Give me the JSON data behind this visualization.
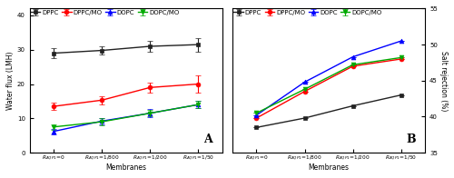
{
  "x_labels": [
    "R$_{\\/AQP1}$=0",
    "R$_{\\/AQP1}$=1/800",
    "R$_{\\/AQP1}$=1/200",
    "R$_{\\/AQP1}$=1/50"
  ],
  "x_positions": [
    0,
    1,
    2,
    3
  ],
  "panel_A": {
    "ylabel": "Water flux (LMH)",
    "ylim": [
      0,
      42
    ],
    "yticks": [
      0,
      10,
      20,
      30,
      40
    ],
    "label": "A",
    "series": [
      {
        "name": "DPPC",
        "y": [
          29.0,
          29.8,
          31.0,
          31.5
        ],
        "yerr": [
          1.5,
          1.2,
          1.5,
          2.0
        ],
        "color": "#222222",
        "marker": "s",
        "linestyle": "-"
      },
      {
        "name": "DPPC/MO",
        "y": [
          13.5,
          15.3,
          19.0,
          20.0
        ],
        "yerr": [
          1.0,
          1.2,
          1.5,
          2.5
        ],
        "color": "#ff0000",
        "marker": "o",
        "linestyle": "-"
      },
      {
        "name": "DOPC",
        "y": [
          6.2,
          9.2,
          11.5,
          14.0
        ],
        "yerr": [
          0.8,
          1.0,
          1.2,
          1.0
        ],
        "color": "#0000ff",
        "marker": "^",
        "linestyle": "-"
      },
      {
        "name": "DOPC/MO",
        "y": [
          7.5,
          9.0,
          11.5,
          14.0
        ],
        "yerr": [
          0.8,
          1.0,
          1.0,
          1.0
        ],
        "color": "#00aa00",
        "marker": "v",
        "linestyle": "-"
      }
    ]
  },
  "panel_B": {
    "ylabel": "Salt rejection (%)",
    "ylim": [
      35,
      55
    ],
    "yticks": [
      35,
      40,
      45,
      50,
      55
    ],
    "label": "B",
    "series": [
      {
        "name": "DPPC",
        "y": [
          38.5,
          39.8,
          41.5,
          43.0
        ],
        "yerr": [
          0.0,
          0.0,
          0.0,
          0.0
        ],
        "color": "#222222",
        "marker": "s",
        "linestyle": "-"
      },
      {
        "name": "DPPC/MO",
        "y": [
          39.8,
          43.5,
          47.0,
          48.0
        ],
        "yerr": [
          0.0,
          0.0,
          0.0,
          0.0
        ],
        "color": "#ff0000",
        "marker": "o",
        "linestyle": "-"
      },
      {
        "name": "DOPC",
        "y": [
          40.2,
          44.8,
          48.3,
          50.5
        ],
        "yerr": [
          0.0,
          0.0,
          0.0,
          0.0
        ],
        "color": "#0000ff",
        "marker": "^",
        "linestyle": "-"
      },
      {
        "name": "DOPC/MO",
        "y": [
          40.5,
          43.8,
          47.2,
          48.2
        ],
        "yerr": [
          0.0,
          0.0,
          0.0,
          0.0
        ],
        "color": "#00aa00",
        "marker": "v",
        "linestyle": "-"
      }
    ]
  },
  "xlabel": "Membranes",
  "background_color": "#ffffff"
}
